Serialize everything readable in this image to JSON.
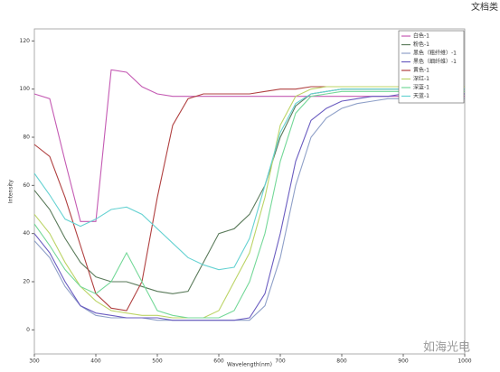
{
  "chart_data": {
    "type": "line",
    "title": "文档类",
    "annotation": "如海光电",
    "x_label": "Wavelength(nm)",
    "y_label": "Intensity",
    "x": [
      300,
      325,
      350,
      375,
      400,
      425,
      450,
      475,
      500,
      525,
      550,
      575,
      600,
      625,
      650,
      675,
      700,
      725,
      750,
      775,
      800,
      825,
      850,
      875,
      900,
      925,
      950,
      975,
      1000
    ],
    "series": [
      {
        "name": "白色-1",
        "color": "#c45ab3",
        "values": [
          98,
          96,
          70,
          45,
          45,
          108,
          107,
          101,
          98,
          97,
          97,
          97,
          97,
          97,
          97,
          97,
          97,
          97,
          97,
          97,
          97,
          97,
          97,
          97,
          97,
          97,
          97,
          97,
          97
        ]
      },
      {
        "name": "粉色-1",
        "color": "#5a7a5a",
        "values": [
          58,
          50,
          38,
          28,
          22,
          20,
          20,
          18,
          16,
          15,
          16,
          28,
          40,
          42,
          48,
          60,
          80,
          93,
          98,
          99,
          100,
          100,
          100,
          100,
          100,
          100,
          100,
          100,
          100
        ]
      },
      {
        "name": "黑色（粗纤维）-1",
        "color": "#8fa0c8",
        "values": [
          37,
          30,
          18,
          10,
          6,
          5,
          5,
          5,
          4,
          4,
          4,
          4,
          4,
          4,
          4,
          10,
          30,
          60,
          80,
          88,
          92,
          94,
          95,
          96,
          96,
          96,
          96,
          96,
          96
        ]
      },
      {
        "name": "黑色（细纤维）-1",
        "color": "#6a5cc0",
        "values": [
          40,
          32,
          20,
          10,
          7,
          6,
          5,
          5,
          5,
          4,
          4,
          4,
          4,
          4,
          5,
          15,
          40,
          70,
          87,
          92,
          95,
          96,
          97,
          97,
          98,
          98,
          98,
          98,
          98
        ]
      },
      {
        "name": "黄色-1",
        "color": "#b04040",
        "values": [
          77,
          72,
          55,
          35,
          15,
          9,
          8,
          20,
          55,
          85,
          96,
          98,
          98,
          98,
          98,
          99,
          100,
          100,
          101,
          101,
          101,
          101,
          101,
          101,
          101,
          101,
          101,
          101,
          101
        ]
      },
      {
        "name": "深红-1",
        "color": "#bcd466",
        "values": [
          48,
          40,
          28,
          18,
          12,
          8,
          7,
          6,
          6,
          5,
          5,
          5,
          8,
          20,
          32,
          55,
          85,
          97,
          100,
          101,
          101,
          101,
          101,
          101,
          101,
          101,
          101,
          101,
          101
        ]
      },
      {
        "name": "深蓝-1",
        "color": "#74d898",
        "values": [
          44,
          35,
          25,
          18,
          15,
          20,
          32,
          20,
          8,
          6,
          5,
          5,
          5,
          8,
          20,
          40,
          70,
          90,
          97,
          98,
          99,
          99,
          99,
          99,
          99,
          99,
          99,
          99,
          99
        ]
      },
      {
        "name": "天蓝-1",
        "color": "#66d2d2",
        "values": [
          65,
          56,
          46,
          43,
          46,
          50,
          51,
          48,
          42,
          36,
          30,
          27,
          25,
          26,
          38,
          60,
          82,
          94,
          98,
          99,
          100,
          100,
          100,
          100,
          100,
          100,
          100,
          100,
          100
        ]
      }
    ],
    "xlim": [
      300,
      1000
    ],
    "xticks": [
      300,
      400,
      500,
      600,
      700,
      800,
      900,
      1000
    ],
    "ylim": [
      -10,
      125
    ],
    "yticks": [
      0,
      20,
      40,
      60,
      80,
      100,
      120
    ],
    "grid": false,
    "legend": "top-right"
  }
}
